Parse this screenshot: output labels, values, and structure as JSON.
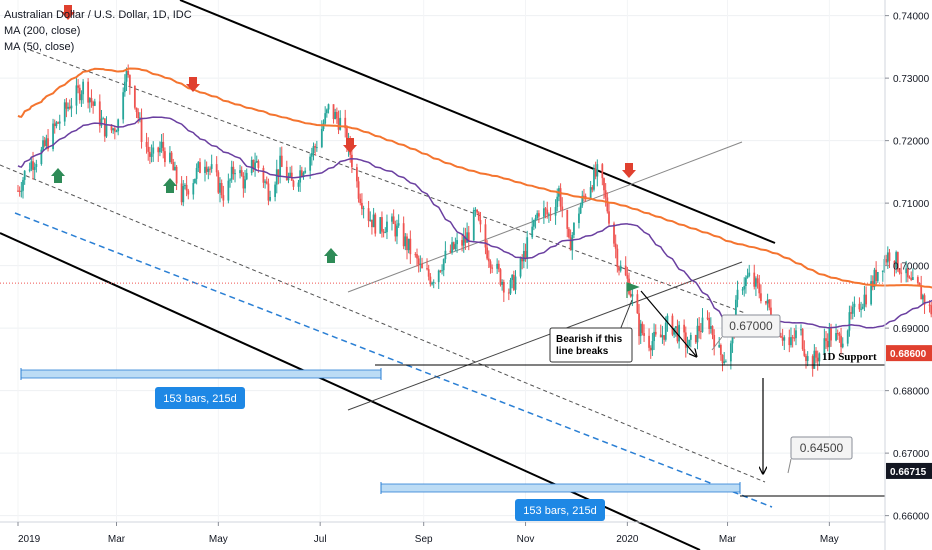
{
  "chart_data": {
    "type": "candlestick",
    "title": "Australian Dollar / U.S. Dollar, 1D, IDC",
    "indicators": [
      {
        "name": "MA (200, close)",
        "color": "#f4742f"
      },
      {
        "name": "MA (50, close)",
        "color": "#6a3fa0"
      }
    ],
    "x_ticks": [
      "2019",
      "Mar",
      "May",
      "Jul",
      "Sep",
      "Nov",
      "2020",
      "Mar",
      "May"
    ],
    "y_ticks": [
      "0.74000",
      "0.73000",
      "0.72000",
      "0.71000",
      "0.70000",
      "0.69000",
      "0.68000",
      "0.67000",
      "0.66000"
    ],
    "ylim": [
      0.6545,
      0.7425
    ],
    "price_labels": [
      {
        "text": "0.68600",
        "value": 0.686,
        "color": "#e0402f"
      },
      {
        "text": "0.66715",
        "value": 0.66715,
        "color": "#131722"
      }
    ],
    "annotations": {
      "support_label": "1D Support",
      "note": [
        "Bearish if this",
        "line breaks"
      ],
      "target_1": "0.67000",
      "target_2": "0.64500",
      "range_1": "153 bars, 215d",
      "range_2": "153 bars, 215d"
    },
    "close_path": [
      [
        0,
        0.712
      ],
      [
        6,
        0.716
      ],
      [
        14,
        0.718
      ],
      [
        22,
        0.722
      ],
      [
        31,
        0.726
      ],
      [
        40,
        0.729
      ],
      [
        46,
        0.725
      ],
      [
        54,
        0.721
      ],
      [
        60,
        0.723
      ],
      [
        64,
        0.731
      ],
      [
        69,
        0.728
      ],
      [
        74,
        0.721
      ],
      [
        80,
        0.717
      ],
      [
        86,
        0.719
      ],
      [
        92,
        0.716
      ],
      [
        98,
        0.711
      ],
      [
        105,
        0.714
      ],
      [
        112,
        0.717
      ],
      [
        118,
        0.714
      ],
      [
        124,
        0.711
      ],
      [
        130,
        0.716
      ],
      [
        136,
        0.713
      ],
      [
        142,
        0.717
      ],
      [
        150,
        0.712
      ],
      [
        157,
        0.716
      ],
      [
        164,
        0.713
      ],
      [
        171,
        0.716
      ],
      [
        178,
        0.719
      ],
      [
        186,
        0.725
      ],
      [
        193,
        0.723
      ],
      [
        199,
        0.718
      ],
      [
        204,
        0.712
      ],
      [
        210,
        0.708
      ],
      [
        216,
        0.706
      ],
      [
        222,
        0.707
      ],
      [
        229,
        0.705
      ],
      [
        236,
        0.702
      ],
      [
        242,
        0.699
      ],
      [
        248,
        0.698
      ],
      [
        255,
        0.701
      ],
      [
        262,
        0.703
      ],
      [
        268,
        0.704
      ],
      [
        274,
        0.708
      ],
      [
        280,
        0.703
      ],
      [
        287,
        0.699
      ],
      [
        294,
        0.696
      ],
      [
        300,
        0.699
      ],
      [
        306,
        0.704
      ],
      [
        312,
        0.709
      ],
      [
        318,
        0.708
      ],
      [
        324,
        0.712
      ],
      [
        330,
        0.703
      ],
      [
        336,
        0.709
      ],
      [
        342,
        0.713
      ],
      [
        348,
        0.715
      ],
      [
        354,
        0.708
      ],
      [
        360,
        0.7
      ],
      [
        366,
        0.697
      ],
      [
        372,
        0.69
      ],
      [
        378,
        0.688
      ],
      [
        384,
        0.688
      ],
      [
        390,
        0.691
      ],
      [
        396,
        0.689
      ],
      [
        402,
        0.687
      ],
      [
        408,
        0.69
      ],
      [
        414,
        0.691
      ],
      [
        420,
        0.686
      ],
      [
        426,
        0.685
      ],
      [
        432,
        0.697
      ],
      [
        438,
        0.698
      ],
      [
        444,
        0.696
      ],
      [
        450,
        0.693
      ],
      [
        456,
        0.69
      ],
      [
        462,
        0.687
      ],
      [
        468,
        0.69
      ],
      [
        474,
        0.684
      ],
      [
        480,
        0.686
      ],
      [
        486,
        0.689
      ],
      [
        492,
        0.688
      ],
      [
        498,
        0.691
      ],
      [
        504,
        0.694
      ],
      [
        510,
        0.696
      ],
      [
        516,
        0.7
      ],
      [
        522,
        0.702
      ],
      [
        528,
        0.7
      ],
      [
        534,
        0.697
      ],
      [
        540,
        0.696
      ],
      [
        546,
        0.693
      ],
      [
        552,
        0.692
      ],
      [
        558,
        0.691
      ],
      [
        564,
        0.69
      ],
      [
        570,
        0.688
      ],
      [
        576,
        0.693
      ],
      [
        582,
        0.696
      ],
      [
        588,
        0.694
      ],
      [
        594,
        0.7
      ],
      [
        600,
        0.699
      ],
      [
        606,
        0.697
      ],
      [
        612,
        0.7
      ],
      [
        618,
        0.706
      ],
      [
        624,
        0.711
      ],
      [
        630,
        0.709
      ],
      [
        636,
        0.701
      ],
      [
        640,
        0.697
      ]
    ]
  }
}
